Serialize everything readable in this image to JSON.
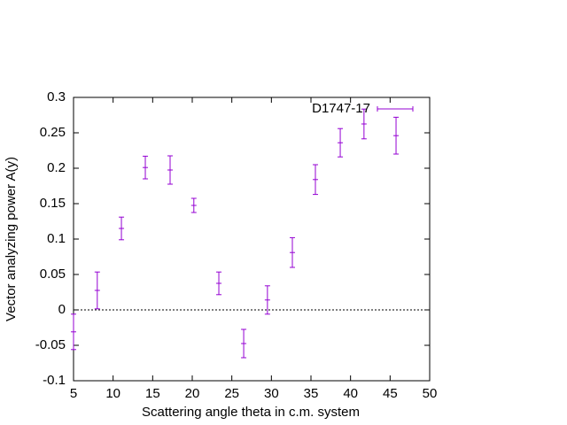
{
  "chart_data": {
    "type": "errorbar",
    "xlabel": "Scattering angle theta in c.m. system",
    "ylabel": "Vector analyzing power A(y)",
    "xlim": [
      5,
      50
    ],
    "xticks": [
      5,
      10,
      15,
      20,
      25,
      30,
      35,
      40,
      45,
      50
    ],
    "ylim": [
      -0.1,
      0.3
    ],
    "yticks": [
      -0.1,
      -0.05,
      0,
      0.05,
      0.1,
      0.15,
      0.2,
      0.25,
      0.3
    ],
    "zeroaxis": true,
    "legend": "top-right",
    "series": [
      {
        "name": "D1747-17",
        "color": "#9400d3",
        "x": [
          5.0,
          8.0,
          11.05,
          14.07,
          17.2,
          20.2,
          23.36,
          26.5,
          29.5,
          32.65,
          35.56,
          38.7,
          41.7,
          45.75
        ],
        "values": [
          -0.031,
          0.0275,
          0.115,
          0.201,
          0.1975,
          0.1475,
          0.0375,
          -0.0475,
          0.014,
          0.081,
          0.184,
          0.236,
          0.2625,
          0.246
        ],
        "errors": [
          0.025,
          0.026,
          0.016,
          0.016,
          0.02,
          0.01,
          0.016,
          0.02,
          0.02,
          0.021,
          0.021,
          0.02,
          0.021,
          0.026
        ]
      }
    ]
  }
}
